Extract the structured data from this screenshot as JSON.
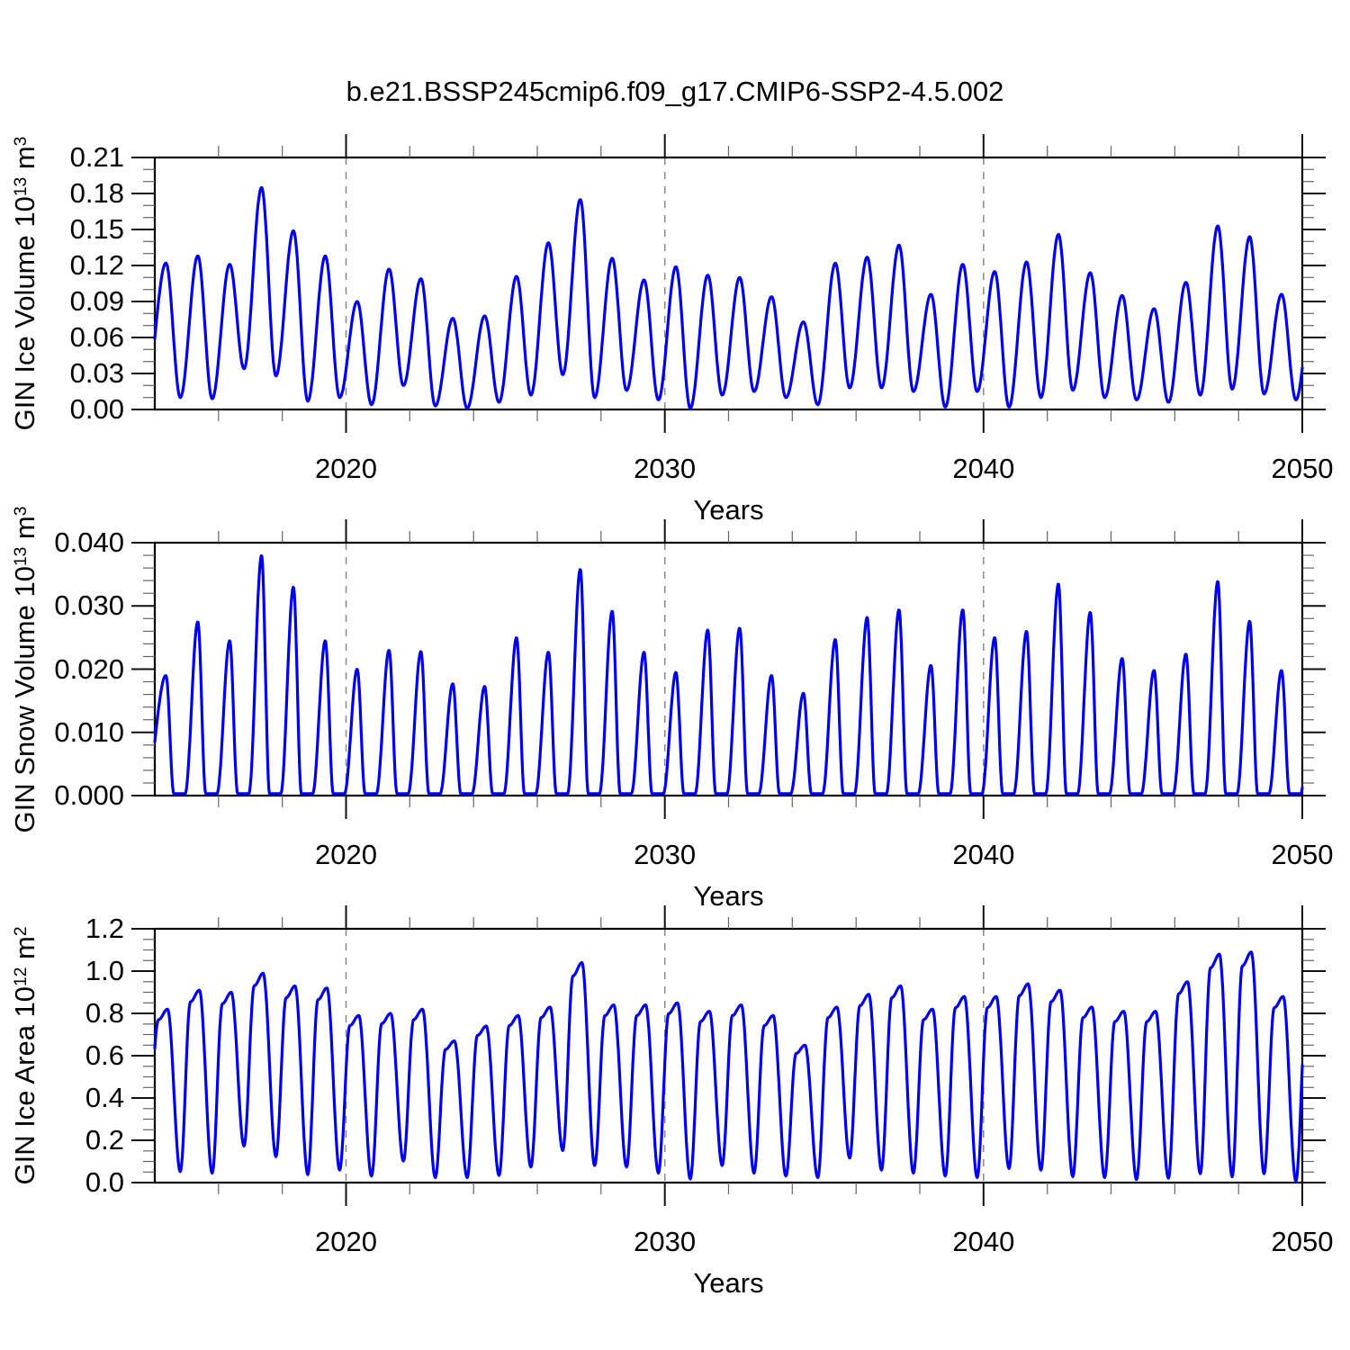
{
  "title": "b.e21.BSSP245cmip6.f09_g17.CMIP6-SSP2-4.5.002",
  "style": {
    "line_color": "#0000EE",
    "grid_color": "#888888",
    "axis_color": "#000000",
    "minor_tick_color": "#666666"
  },
  "chart_data": [
    {
      "type": "line",
      "name": "gin-ice-volume",
      "ylabel_segments": [
        {
          "text": "GIN Ice Volume 10",
          "sup": false
        },
        {
          "text": "13",
          "sup": true
        },
        {
          "text": " m",
          "sup": false
        },
        {
          "text": "3",
          "sup": true
        }
      ],
      "xlabel": "Years",
      "xlim": [
        2014,
        2050
      ],
      "ylim": [
        0,
        0.21
      ],
      "xticks": [
        2020,
        2030,
        2040,
        2050
      ],
      "xtick_labels": [
        "2020",
        "2030",
        "2040",
        "2050"
      ],
      "xminor_step": 2,
      "gridlines_x": [
        2020,
        2030,
        2040
      ],
      "ytick_values": [
        0,
        0.03,
        0.06,
        0.09,
        0.12,
        0.15,
        0.18,
        0.21
      ],
      "ytick_labels": [
        "0.00",
        "0.03",
        "0.06",
        "0.09",
        "0.12",
        "0.15",
        "0.18",
        "0.21"
      ],
      "yminor_step": 0.01,
      "start_year": 2014,
      "peak_time": 0.35,
      "trough_time": 0.8,
      "peak_shape": "normal",
      "trough_shape": "normal",
      "annual_peaks": [
        0.122,
        0.128,
        0.121,
        0.185,
        0.149,
        0.128,
        0.09,
        0.117,
        0.109,
        0.076,
        0.078,
        0.111,
        0.139,
        0.175,
        0.126,
        0.108,
        0.119,
        0.112,
        0.11,
        0.094,
        0.073,
        0.122,
        0.127,
        0.137,
        0.096,
        0.121,
        0.115,
        0.123,
        0.146,
        0.114,
        0.095,
        0.084,
        0.106,
        0.153,
        0.144,
        0.096
      ],
      "annual_troughs": [
        0.01,
        0.009,
        0.034,
        0.028,
        0.007,
        0.01,
        0.004,
        0.02,
        0.003,
        0.001,
        0.006,
        0.012,
        0.029,
        0.01,
        0.016,
        0.008,
        0.001,
        0.012,
        0.015,
        0.01,
        0.004,
        0.018,
        0.018,
        0.015,
        0.002,
        0.015,
        0.002,
        0.01,
        0.016,
        0.01,
        0.008,
        0.006,
        0.012,
        0.017,
        0.013,
        0.008
      ],
      "end_peak": 0.1
    },
    {
      "type": "line",
      "name": "gin-snow-volume",
      "ylabel_segments": [
        {
          "text": "GIN Snow Volume 10",
          "sup": false
        },
        {
          "text": "13",
          "sup": true
        },
        {
          "text": " m",
          "sup": false
        },
        {
          "text": "3",
          "sup": true
        }
      ],
      "xlabel": "Years",
      "xlim": [
        2014,
        2050
      ],
      "ylim": [
        0,
        0.04
      ],
      "xticks": [
        2020,
        2030,
        2040,
        2050
      ],
      "xtick_labels": [
        "2020",
        "2030",
        "2040",
        "2050"
      ],
      "xminor_step": 2,
      "gridlines_x": [
        2020,
        2030,
        2040
      ],
      "ytick_values": [
        0,
        0.01,
        0.02,
        0.03,
        0.04
      ],
      "ytick_labels": [
        "0.000",
        "0.010",
        "0.020",
        "0.030",
        "0.040"
      ],
      "yminor_step": 0.002,
      "start_year": 2014,
      "peak_time": 0.35,
      "trough_time": 0.8,
      "peak_shape": "normal",
      "trough_shape": "flat",
      "annual_peaks": [
        0.019,
        0.0275,
        0.0245,
        0.038,
        0.033,
        0.0245,
        0.02,
        0.023,
        0.0228,
        0.0177,
        0.0173,
        0.025,
        0.0227,
        0.0358,
        0.0292,
        0.0227,
        0.0195,
        0.0262,
        0.0265,
        0.019,
        0.0162,
        0.0247,
        0.0282,
        0.0294,
        0.0206,
        0.0294,
        0.025,
        0.026,
        0.0335,
        0.029,
        0.0217,
        0.0198,
        0.0224,
        0.0339,
        0.0276,
        0.0198
      ],
      "annual_troughs": [
        0.0003,
        0.0003,
        0.0003,
        0.0003,
        0.0003,
        0.0003,
        0.0003,
        0.0003,
        0.0003,
        0.0003,
        0.0003,
        0.0003,
        0.0003,
        0.0003,
        0.0003,
        0.0003,
        0.0003,
        0.0003,
        0.0003,
        0.0003,
        0.0003,
        0.0003,
        0.0003,
        0.0003,
        0.0003,
        0.0003,
        0.0003,
        0.0003,
        0.0003,
        0.0003,
        0.0003,
        0.0003,
        0.0003,
        0.0003,
        0.0003,
        0.0003
      ],
      "end_peak": 0.025
    },
    {
      "type": "line",
      "name": "gin-ice-area",
      "ylabel_segments": [
        {
          "text": "GIN Ice Area 10",
          "sup": false
        },
        {
          "text": "12",
          "sup": true
        },
        {
          "text": " m",
          "sup": false
        },
        {
          "text": "2",
          "sup": true
        }
      ],
      "xlabel": "Years",
      "xlim": [
        2014,
        2050
      ],
      "ylim": [
        0,
        1.2
      ],
      "xticks": [
        2020,
        2030,
        2040,
        2050
      ],
      "xtick_labels": [
        "2020",
        "2030",
        "2040",
        "2050"
      ],
      "xminor_step": 2,
      "gridlines_x": [
        2020,
        2030,
        2040
      ],
      "ytick_values": [
        0,
        0.2,
        0.4,
        0.6,
        0.8,
        1.0,
        1.2
      ],
      "ytick_labels": [
        "0.0",
        "0.2",
        "0.4",
        "0.6",
        "0.8",
        "1.0",
        "1.2"
      ],
      "yminor_step": 0.05,
      "start_year": 2014,
      "peak_time": 0.35,
      "trough_time": 0.8,
      "peak_shape": "broad",
      "trough_shape": "normal",
      "annual_peaks": [
        0.82,
        0.91,
        0.9,
        0.99,
        0.93,
        0.92,
        0.79,
        0.8,
        0.82,
        0.67,
        0.74,
        0.79,
        0.83,
        1.04,
        0.84,
        0.84,
        0.85,
        0.81,
        0.84,
        0.79,
        0.65,
        0.83,
        0.89,
        0.93,
        0.82,
        0.88,
        0.88,
        0.94,
        0.91,
        0.83,
        0.81,
        0.81,
        0.95,
        1.08,
        1.09,
        0.88
      ],
      "annual_troughs": [
        0.052,
        0.045,
        0.173,
        0.123,
        0.038,
        0.059,
        0.031,
        0.102,
        0.024,
        0.024,
        0.034,
        0.074,
        0.152,
        0.081,
        0.074,
        0.045,
        0.017,
        0.081,
        0.045,
        0.031,
        0.024,
        0.116,
        0.059,
        0.045,
        0.031,
        0.024,
        0.067,
        0.059,
        0.028,
        0.024,
        0.014,
        0.021,
        0.042,
        0.028,
        0.042,
        0.007
      ],
      "end_peak": 0.85
    }
  ]
}
